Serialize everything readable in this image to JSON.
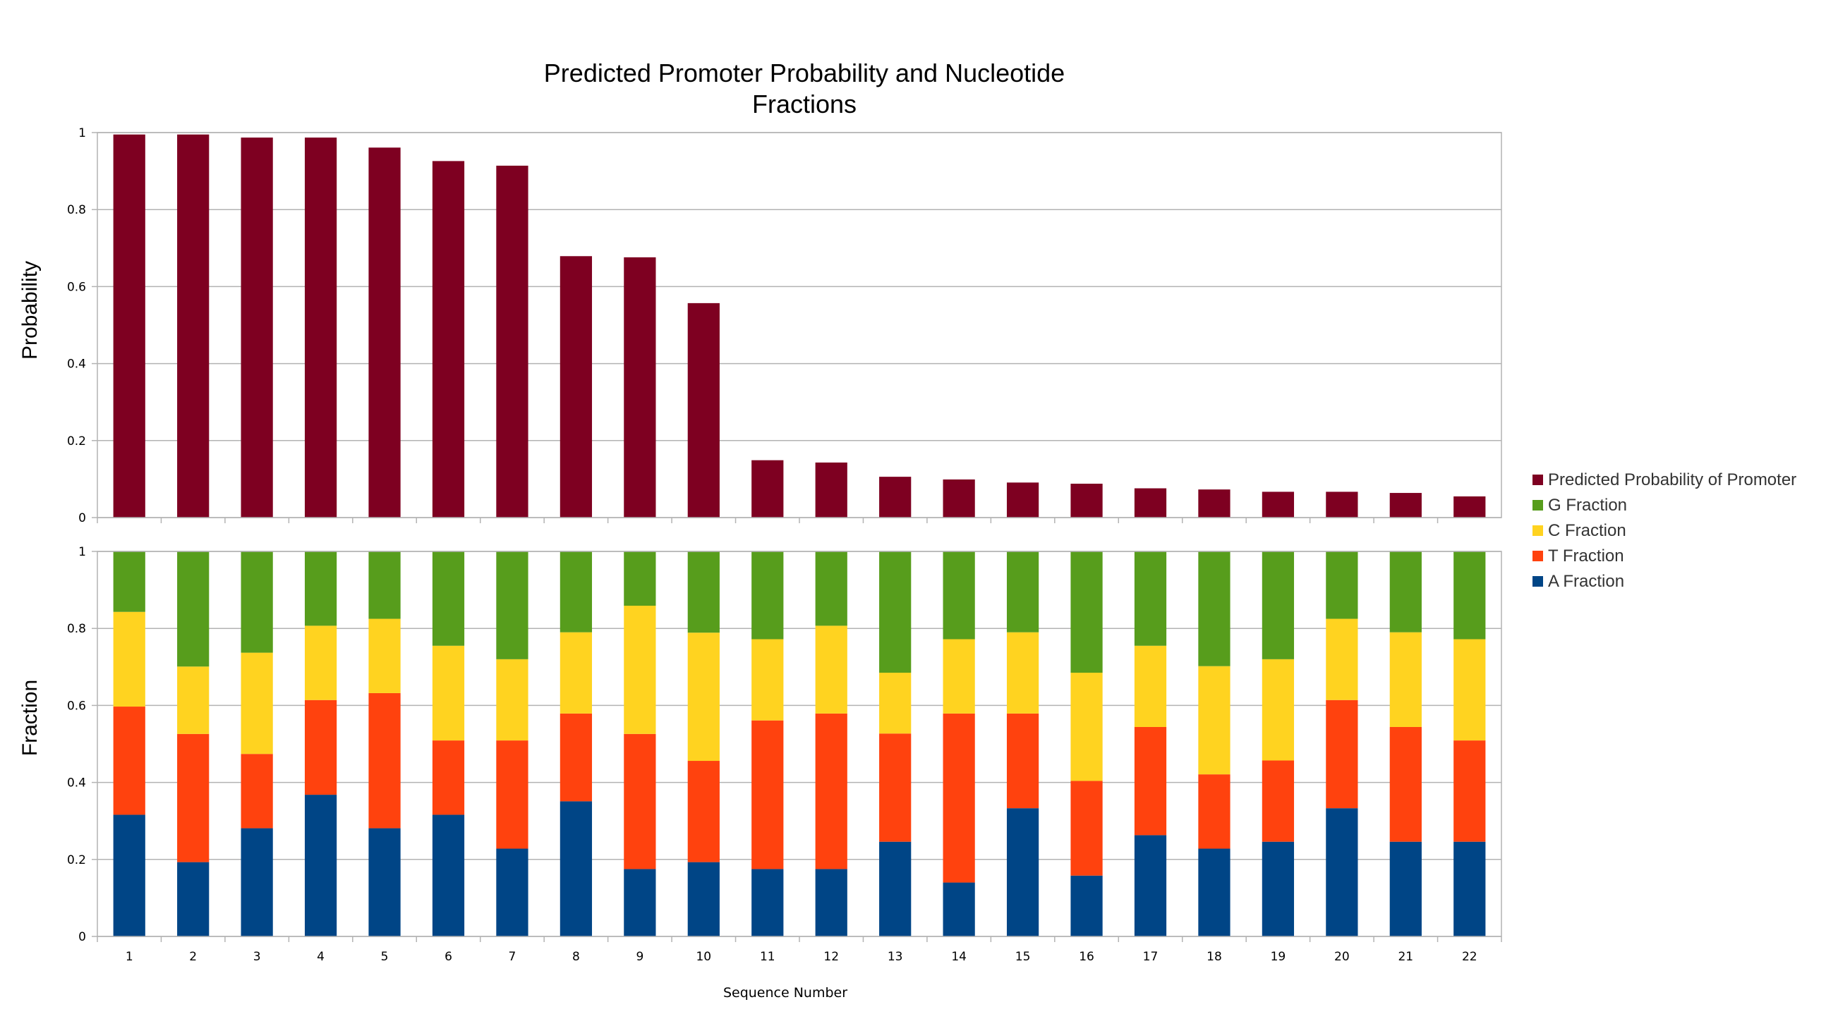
{
  "chart_data": {
    "type": "bar",
    "title_lines": [
      "Predicted Promoter Probability and Nucleotide",
      "Fractions"
    ],
    "xlabel": "Sequence Number",
    "categories": [
      "1",
      "2",
      "3",
      "4",
      "5",
      "6",
      "7",
      "8",
      "9",
      "10",
      "11",
      "12",
      "13",
      "14",
      "15",
      "16",
      "17",
      "18",
      "19",
      "20",
      "21",
      "22"
    ],
    "top_panel": {
      "ylabel": "Probability",
      "ylim": [
        0,
        1
      ],
      "yticks": [
        "0",
        "0.2",
        "0.4",
        "0.6",
        "0.8",
        "1"
      ],
      "grid": true,
      "series": [
        {
          "name": "Predicted Probability of Promoter",
          "color": "#7e0021",
          "values": [
            0.995,
            0.995,
            0.987,
            0.987,
            0.961,
            0.926,
            0.914,
            0.679,
            0.676,
            0.557,
            0.149,
            0.143,
            0.106,
            0.099,
            0.091,
            0.088,
            0.076,
            0.073,
            0.067,
            0.067,
            0.064,
            0.055
          ]
        }
      ]
    },
    "bottom_panel": {
      "ylabel": "Fraction",
      "ylim": [
        0,
        1
      ],
      "yticks": [
        "0",
        "0.2",
        "0.4",
        "0.6",
        "0.8",
        "1"
      ],
      "grid": true,
      "stacked": true,
      "series": [
        {
          "name": "A Fraction",
          "color": "#004586",
          "values": [
            0.316,
            0.193,
            0.281,
            0.368,
            0.281,
            0.316,
            0.228,
            0.351,
            0.175,
            0.193,
            0.175,
            0.175,
            0.246,
            0.14,
            0.333,
            0.158,
            0.263,
            0.228,
            0.246,
            0.333,
            0.246,
            0.246
          ]
        },
        {
          "name": "T Fraction",
          "color": "#ff420e",
          "values": [
            0.281,
            0.333,
            0.193,
            0.246,
            0.351,
            0.193,
            0.281,
            0.228,
            0.351,
            0.263,
            0.386,
            0.404,
            0.281,
            0.439,
            0.246,
            0.246,
            0.281,
            0.193,
            0.211,
            0.281,
            0.298,
            0.263
          ]
        },
        {
          "name": "C Fraction",
          "color": "#ffd320",
          "values": [
            0.246,
            0.175,
            0.263,
            0.193,
            0.193,
            0.246,
            0.211,
            0.211,
            0.333,
            0.333,
            0.211,
            0.228,
            0.158,
            0.193,
            0.211,
            0.281,
            0.211,
            0.281,
            0.263,
            0.211,
            0.246,
            0.263
          ]
        },
        {
          "name": "G Fraction",
          "color": "#579d1c",
          "values": [
            0.158,
            0.298,
            0.263,
            0.193,
            0.175,
            0.246,
            0.281,
            0.211,
            0.14,
            0.211,
            0.228,
            0.193,
            0.316,
            0.228,
            0.211,
            0.316,
            0.246,
            0.298,
            0.281,
            0.175,
            0.211,
            0.228
          ]
        }
      ]
    },
    "legend": {
      "placement": "right",
      "entries": [
        {
          "name": "Predicted Probability of Promoter",
          "color": "#7e0021"
        },
        {
          "name": "G Fraction",
          "color": "#579d1c"
        },
        {
          "name": "C Fraction",
          "color": "#ffd320"
        },
        {
          "name": "T Fraction",
          "color": "#ff420e"
        },
        {
          "name": "A Fraction",
          "color": "#004586"
        }
      ]
    }
  }
}
